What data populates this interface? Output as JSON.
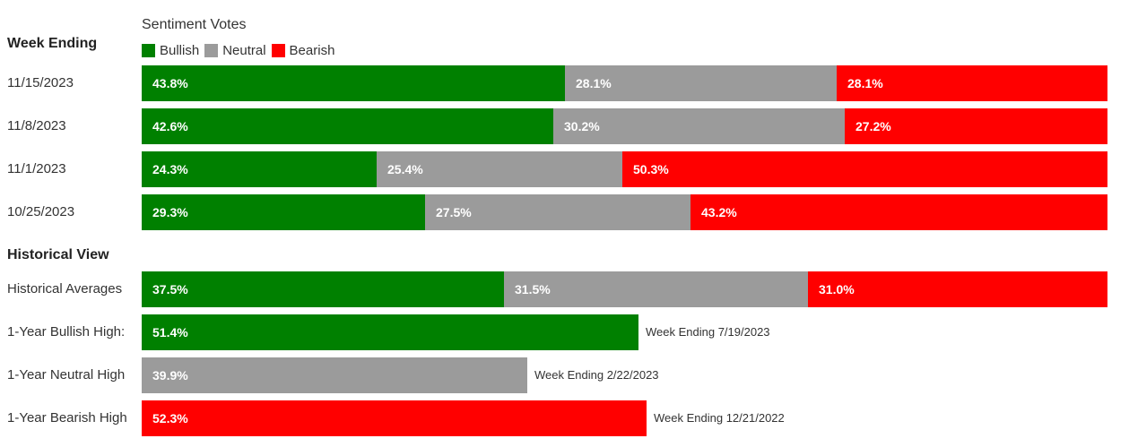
{
  "chart_data": {
    "type": "bar",
    "stacked": true,
    "orientation": "horizontal",
    "title": "Sentiment Votes",
    "row_header": "Week Ending",
    "legend": [
      {
        "name": "Bullish",
        "color": "#008000"
      },
      {
        "name": "Neutral",
        "color": "#9b9b9b"
      },
      {
        "name": "Bearish",
        "color": "#ff0000"
      }
    ],
    "weekly": [
      {
        "label": "11/15/2023",
        "values": [
          43.8,
          28.1,
          28.1
        ],
        "texts": [
          "43.8%",
          "28.1%",
          "28.1%"
        ]
      },
      {
        "label": "11/8/2023",
        "values": [
          42.6,
          30.2,
          27.2
        ],
        "texts": [
          "42.6%",
          "30.2%",
          "27.2%"
        ]
      },
      {
        "label": "11/1/2023",
        "values": [
          24.3,
          25.4,
          50.3
        ],
        "texts": [
          "24.3%",
          "25.4%",
          "50.3%"
        ]
      },
      {
        "label": "10/25/2023",
        "values": [
          29.3,
          27.5,
          43.2
        ],
        "texts": [
          "29.3%",
          "27.5%",
          "43.2%"
        ]
      }
    ],
    "historical_header": "Historical View",
    "historical_averages": {
      "label": "Historical Averages",
      "values": [
        37.5,
        31.5,
        31.0
      ],
      "texts": [
        "37.5%",
        "31.5%",
        "31.0%"
      ]
    },
    "highs": [
      {
        "label": "1-Year Bullish High:",
        "series": 0,
        "value": 51.4,
        "text": "51.4%",
        "note": "Week Ending 7/19/2023"
      },
      {
        "label": "1-Year Neutral High",
        "series": 1,
        "value": 39.9,
        "text": "39.9%",
        "note": "Week Ending 2/22/2023"
      },
      {
        "label": "1-Year Bearish High",
        "series": 2,
        "value": 52.3,
        "text": "52.3%",
        "note": "Week Ending 12/21/2022"
      }
    ]
  }
}
